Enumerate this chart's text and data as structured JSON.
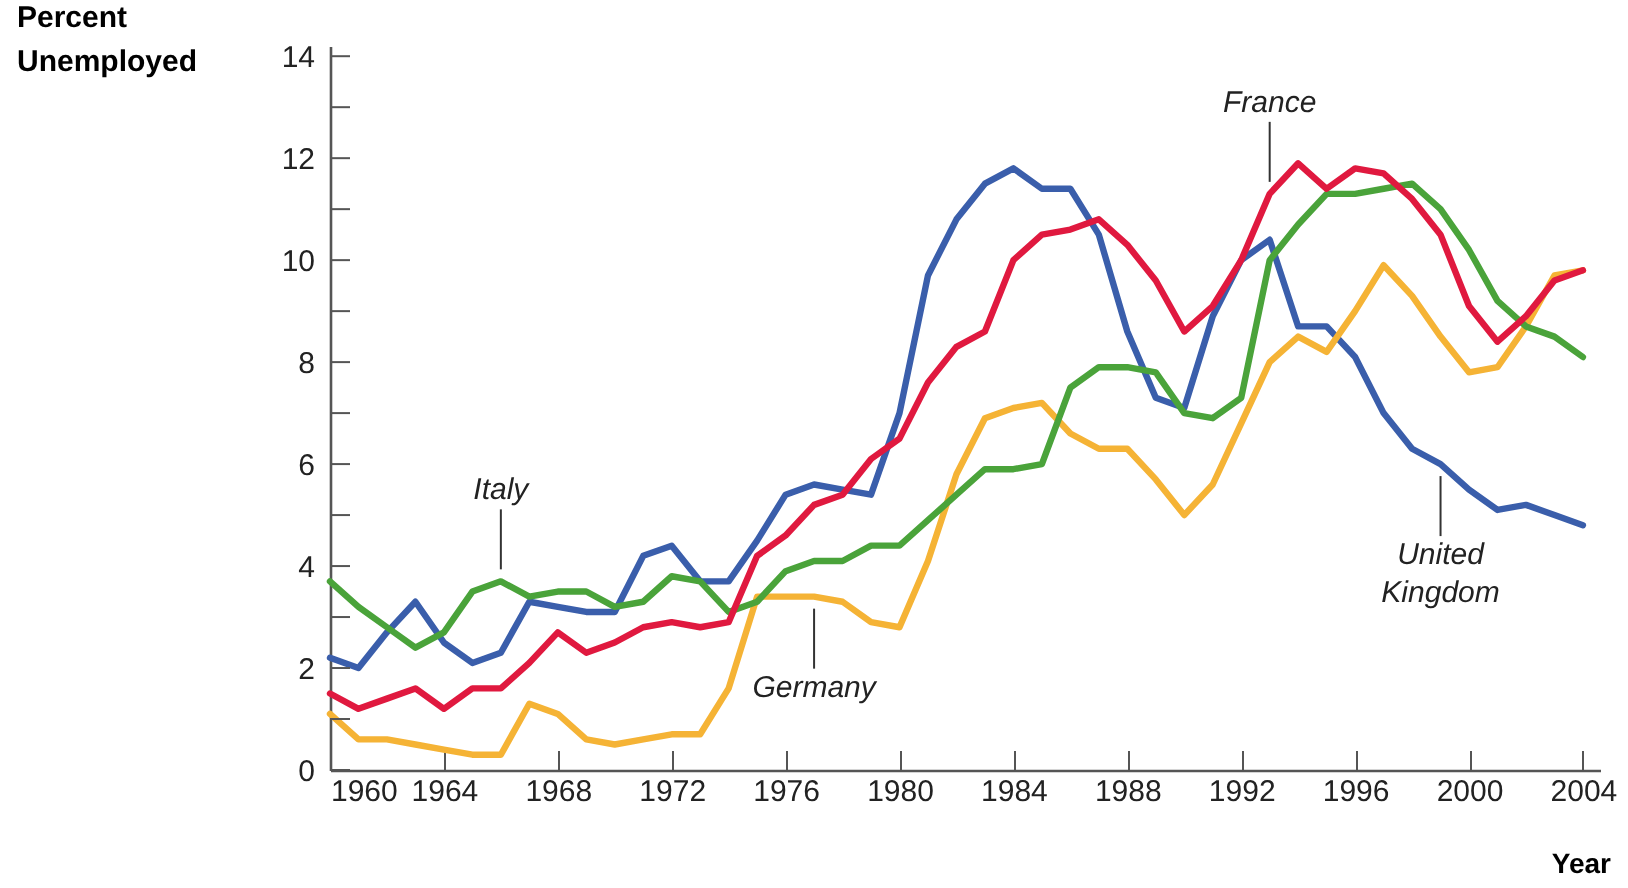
{
  "chart_data": {
    "type": "line",
    "xlabel": "Year",
    "ylabel": "Percent Unemployed",
    "x": [
      1960,
      1961,
      1962,
      1963,
      1964,
      1965,
      1966,
      1967,
      1968,
      1969,
      1970,
      1971,
      1972,
      1973,
      1974,
      1975,
      1976,
      1977,
      1978,
      1979,
      1980,
      1981,
      1982,
      1983,
      1984,
      1985,
      1986,
      1987,
      1988,
      1989,
      1990,
      1991,
      1992,
      1993,
      1994,
      1995,
      1996,
      1997,
      1998,
      1999,
      2000,
      2001,
      2002,
      2003,
      2004
    ],
    "series": [
      {
        "color": "#3a5eab",
        "values": [
          2.2,
          2.0,
          2.7,
          3.3,
          2.5,
          2.1,
          2.3,
          3.3,
          3.2,
          3.1,
          3.1,
          4.2,
          4.4,
          3.7,
          3.7,
          4.5,
          5.4,
          5.6,
          5.5,
          5.4,
          7.0,
          9.7,
          10.8,
          11.5,
          11.8,
          11.4,
          11.4,
          10.5,
          8.6,
          7.3,
          7.1,
          8.9,
          10.0,
          10.4,
          8.7,
          8.7,
          8.1,
          7.0,
          6.3,
          6.0,
          5.5,
          5.1,
          5.2,
          5.0,
          4.8
        ]
      },
      {
        "color": "#f5b335",
        "values": [
          1.1,
          0.6,
          0.6,
          0.5,
          0.4,
          0.3,
          0.3,
          1.3,
          1.1,
          0.6,
          0.5,
          0.6,
          0.7,
          0.7,
          1.6,
          3.4,
          3.4,
          3.4,
          3.3,
          2.9,
          2.8,
          4.1,
          5.8,
          6.9,
          7.1,
          7.2,
          6.6,
          6.3,
          6.3,
          5.7,
          5.0,
          5.6,
          6.8,
          8.0,
          8.5,
          8.2,
          9.0,
          9.9,
          9.3,
          8.5,
          7.8,
          7.9,
          8.7,
          9.7,
          9.8
        ]
      },
      {
        "color": "#4aa33a",
        "values": [
          3.7,
          3.2,
          2.8,
          2.4,
          2.7,
          3.5,
          3.7,
          3.4,
          3.5,
          3.5,
          3.2,
          3.3,
          3.8,
          3.7,
          3.1,
          3.3,
          3.9,
          4.1,
          4.1,
          4.4,
          4.4,
          4.9,
          5.4,
          5.9,
          5.9,
          6.0,
          7.5,
          7.9,
          7.9,
          7.8,
          7.0,
          6.9,
          7.3,
          10.0,
          10.7,
          11.3,
          11.3,
          11.4,
          11.5,
          11.0,
          10.2,
          9.2,
          8.7,
          8.5,
          8.1
        ]
      },
      {
        "color": "#e0193f",
        "values": [
          1.5,
          1.2,
          1.4,
          1.6,
          1.2,
          1.6,
          1.6,
          2.1,
          2.7,
          2.3,
          2.5,
          2.8,
          2.9,
          2.8,
          2.9,
          4.2,
          4.6,
          5.2,
          5.4,
          6.1,
          6.5,
          7.6,
          8.3,
          8.6,
          10.0,
          10.5,
          10.6,
          10.8,
          10.3,
          9.6,
          8.6,
          9.1,
          10.0,
          11.3,
          11.9,
          11.4,
          11.8,
          11.7,
          11.2,
          10.5,
          9.1,
          8.4,
          8.9,
          9.6,
          9.8
        ]
      }
    ],
    "annotations": [
      {
        "text": "Italy",
        "x": 1966,
        "y": 3.7
      },
      {
        "text": "Germany",
        "x": 1977,
        "y": 3.4
      },
      {
        "text": "France",
        "x": 1993,
        "y": 11.3
      },
      {
        "text": "United Kingdom",
        "x": 1999,
        "y": 6.0
      }
    ],
    "xlim": [
      1960,
      2004.6
    ],
    "xticks": [
      1960,
      1964,
      1968,
      1972,
      1976,
      1980,
      1984,
      1988,
      1992,
      1996,
      2000,
      2004
    ],
    "ylim": [
      0,
      14.2
    ],
    "yticks": [
      0,
      {
        "value": 1,
        "label": null
      },
      2,
      {
        "value": 3,
        "label": null
      },
      4,
      {
        "value": 5,
        "label": null
      },
      6,
      {
        "value": 7,
        "label": null
      },
      8,
      {
        "value": 9,
        "label": null
      },
      10,
      {
        "value": 11,
        "label": null
      },
      12,
      {
        "value": 13,
        "label": null
      },
      14
    ],
    "grid": false,
    "marker": "none",
    "line_style": "solid"
  }
}
